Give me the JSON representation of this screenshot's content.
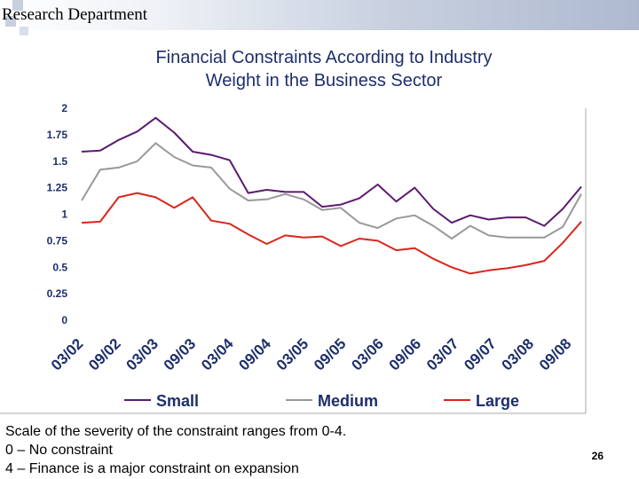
{
  "header": {
    "text": "Research Department"
  },
  "title_lines": [
    "Financial Constraints According to Industry",
    "Weight in the Business Sector"
  ],
  "chart_data": {
    "type": "line",
    "title": "Financial Constraints According to Industry Weight in the Business Sector",
    "ylim": [
      0,
      2
    ],
    "y_ticks": [
      "0",
      "0.25",
      "0.5",
      "0.75",
      "1",
      "1.25",
      "1.5",
      "1.75",
      "2"
    ],
    "x_tick_labels": [
      "03/02",
      "09/02",
      "03/03",
      "09/03",
      "03/04",
      "09/04",
      "03/05",
      "09/05",
      "03/06",
      "09/06",
      "03/07",
      "09/07",
      "03/08",
      "09/08"
    ],
    "grid": false,
    "legend_position": "bottom",
    "series": [
      {
        "name": "Small",
        "color": "#5c1a6e",
        "values": [
          1.59,
          1.6,
          1.7,
          1.78,
          1.91,
          1.77,
          1.59,
          1.56,
          1.51,
          1.2,
          1.23,
          1.21,
          1.21,
          1.07,
          1.09,
          1.15,
          1.28,
          1.12,
          1.25,
          1.05,
          0.92,
          0.99,
          0.95,
          0.97,
          0.97,
          0.89,
          1.05,
          1.26
        ]
      },
      {
        "name": "Medium",
        "color": "#999999",
        "values": [
          1.13,
          1.42,
          1.44,
          1.5,
          1.67,
          1.54,
          1.46,
          1.44,
          1.24,
          1.13,
          1.14,
          1.19,
          1.14,
          1.04,
          1.06,
          0.92,
          0.87,
          0.96,
          0.99,
          0.89,
          0.77,
          0.89,
          0.8,
          0.78,
          0.78,
          0.78,
          0.88,
          1.19
        ]
      },
      {
        "name": "Large",
        "color": "#d9261c",
        "values": [
          0.92,
          0.93,
          1.16,
          1.2,
          1.16,
          1.06,
          1.16,
          0.94,
          0.91,
          0.81,
          0.72,
          0.8,
          0.78,
          0.79,
          0.7,
          0.77,
          0.75,
          0.66,
          0.68,
          0.58,
          0.5,
          0.44,
          0.47,
          0.49,
          0.52,
          0.56,
          0.73,
          0.93
        ]
      }
    ]
  },
  "footnote": {
    "lines": [
      "Scale of  the severity of the constraint ranges from 0-4.",
      "0 – No constraint",
      "4 – Finance is a major constraint on expansion"
    ]
  },
  "page_number": "26"
}
